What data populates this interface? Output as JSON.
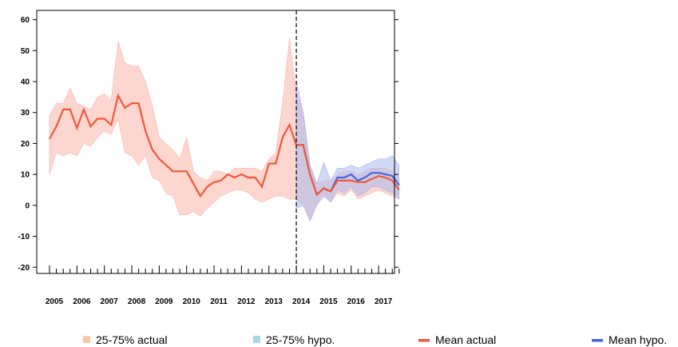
{
  "chart_data": {
    "type": "line",
    "title": "",
    "xlabel": "",
    "ylabel": "",
    "xlim": [
      2005,
      2017.85
    ],
    "ylim": [
      -22,
      63
    ],
    "yticks": [
      -20,
      -10,
      0,
      10,
      20,
      30,
      40,
      50,
      60
    ],
    "xtick_labels": [
      "2005",
      "2006",
      "2007",
      "2008",
      "2009",
      "2010",
      "2011",
      "2012",
      "2013",
      "2014",
      "2015",
      "2016",
      "2017"
    ],
    "vline_x": 2014.0,
    "grid": false,
    "legend_position": "bottom",
    "colors": {
      "mean_actual": "#f0583c",
      "mean_hypo": "#4366e0",
      "band_actual": "#fcc8c0",
      "band_hypo": "#aabbf0",
      "legend_band_actual": "#f9c9a6",
      "legend_band_hypo": "#a8d4e6"
    },
    "series": [
      {
        "name": "Mean actual",
        "x": [
          2005.0,
          2005.25,
          2005.5,
          2005.75,
          2006.0,
          2006.25,
          2006.5,
          2006.75,
          2007.0,
          2007.25,
          2007.5,
          2007.75,
          2008.0,
          2008.25,
          2008.5,
          2008.75,
          2009.0,
          2009.25,
          2009.5,
          2009.75,
          2010.0,
          2010.25,
          2010.5,
          2010.75,
          2011.0,
          2011.25,
          2011.5,
          2011.75,
          2012.0,
          2012.25,
          2012.5,
          2012.75,
          2013.0,
          2013.25,
          2013.5,
          2013.75,
          2014.0,
          2014.25,
          2014.5,
          2014.75,
          2015.0,
          2015.25,
          2015.5,
          2015.75,
          2016.0,
          2016.25,
          2016.5,
          2016.75,
          2017.0,
          2017.25,
          2017.5,
          2017.75
        ],
        "values": [
          21.5,
          25.5,
          31,
          31,
          25,
          31,
          25.5,
          28,
          28,
          26,
          35.5,
          31.5,
          33,
          33,
          24,
          18,
          15,
          13,
          11,
          11,
          11,
          7,
          3,
          6,
          7.5,
          8,
          10,
          9,
          10,
          9,
          9,
          6,
          13.5,
          13.5,
          22,
          26,
          19.5,
          19.5,
          10,
          3.5,
          5.5,
          4.5,
          8,
          8,
          8,
          7.5,
          7.5,
          8.5,
          9.5,
          9,
          8,
          5
        ]
      },
      {
        "name": "Mean hypo.",
        "x": [
          2014.0,
          2014.25,
          2014.5,
          2014.75,
          2015.0,
          2015.25,
          2015.5,
          2015.75,
          2016.0,
          2016.25,
          2016.5,
          2016.75,
          2017.0,
          2017.25,
          2017.5,
          2017.75
        ],
        "values": [
          19.5,
          19.5,
          10,
          3.5,
          5.5,
          4.5,
          9,
          9,
          10,
          8,
          9,
          10.5,
          10.5,
          10,
          9.5,
          6.5
        ]
      },
      {
        "name": "25-75% actual",
        "x": [
          2005.0,
          2005.25,
          2005.5,
          2005.75,
          2006.0,
          2006.25,
          2006.5,
          2006.75,
          2007.0,
          2007.25,
          2007.5,
          2007.75,
          2008.0,
          2008.25,
          2008.5,
          2008.75,
          2009.0,
          2009.25,
          2009.5,
          2009.75,
          2010.0,
          2010.25,
          2010.5,
          2010.75,
          2011.0,
          2011.25,
          2011.5,
          2011.75,
          2012.0,
          2012.25,
          2012.5,
          2012.75,
          2013.0,
          2013.25,
          2013.5,
          2013.75,
          2014.0,
          2014.25,
          2014.5,
          2014.75,
          2015.0,
          2015.25,
          2015.5,
          2015.75,
          2016.0,
          2016.25,
          2016.5,
          2016.75,
          2017.0,
          2017.25,
          2017.5,
          2017.75
        ],
        "upper": [
          29,
          33,
          33,
          38,
          33,
          32,
          31,
          35,
          36,
          34,
          53,
          46,
          45,
          45,
          40,
          32,
          22,
          20,
          18,
          15,
          22,
          11,
          9,
          8,
          11,
          11,
          10,
          12,
          12,
          12,
          12,
          11,
          15,
          17,
          33,
          54,
          36,
          30,
          13,
          7,
          8,
          8,
          10,
          11,
          11,
          10,
          11,
          12,
          12,
          12,
          11,
          9
        ],
        "lower": [
          10,
          17,
          16,
          17,
          16,
          20,
          19,
          22,
          24,
          23,
          28,
          17,
          16,
          13,
          16,
          9,
          8,
          4,
          3,
          -3,
          -3,
          -2,
          -3.5,
          -1,
          1,
          3,
          4,
          5,
          5,
          4,
          2,
          1,
          2,
          3,
          3,
          2,
          2,
          0,
          -5,
          0,
          3,
          1,
          4,
          3,
          5,
          2,
          3,
          4,
          5,
          4,
          3,
          2
        ]
      },
      {
        "name": "25-75% hypo.",
        "x": [
          2014.0,
          2014.25,
          2014.5,
          2014.75,
          2015.0,
          2015.25,
          2015.5,
          2015.75,
          2016.0,
          2016.25,
          2016.5,
          2016.75,
          2017.0,
          2017.25,
          2017.5,
          2017.75
        ],
        "upper": [
          40,
          30,
          13,
          7,
          14,
          8,
          12,
          12,
          13,
          12,
          13,
          14,
          15,
          15,
          16,
          13
        ],
        "lower": [
          -1,
          0,
          -5,
          0,
          3,
          1,
          5,
          4,
          6,
          3,
          4,
          6,
          6,
          5,
          4,
          2
        ]
      }
    ]
  },
  "legend": [
    {
      "label": "25-75% actual",
      "kind": "box",
      "color": "#f9c9a6"
    },
    {
      "label": "25-75% hypo.",
      "kind": "box",
      "color": "#a8d4e6"
    },
    {
      "label": "Mean actual",
      "kind": "line",
      "color": "#f0583c"
    },
    {
      "label": "Mean hypo.",
      "kind": "line",
      "color": "#4366e0"
    }
  ]
}
